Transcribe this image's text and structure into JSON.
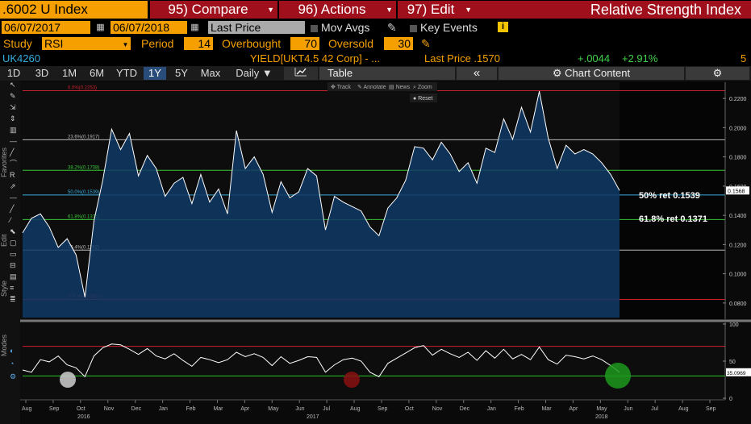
{
  "header": {
    "ticker": ".6002 U Index",
    "compare_label": "95) Compare",
    "actions_label": "96) Actions",
    "edit_label": "97) Edit",
    "title": "Relative Strength Index"
  },
  "params": {
    "start_date": "06/07/2017",
    "end_date": "06/07/2018",
    "price_field": "Last Price",
    "mov_avgs": "Mov Avgs",
    "key_events": "Key Events",
    "study_label": "Study",
    "study_value": "RSI",
    "period_label": "Period",
    "period_value": "14",
    "overbought_label": "Overbought",
    "overbought_value": "70",
    "oversold_label": "Oversold",
    "oversold_value": "30"
  },
  "security": {
    "id": "UK4260",
    "description": "YIELD[UKT4.5 42 Corp] - ...",
    "last_price_label": "Last Price .1570",
    "change": "+.0044",
    "change_pct": "+2.91%",
    "count": "5"
  },
  "toolbar": {
    "ranges": [
      "1D",
      "3D",
      "1M",
      "6M",
      "YTD",
      "1Y",
      "5Y",
      "Max"
    ],
    "active_range": "1Y",
    "frequency": "Daily",
    "table_label": "Table",
    "chart_content_label": "Chart Content",
    "collapse_icon": "double-chevron-left-icon",
    "settings_icon": "gear-icon"
  },
  "chart_tools": {
    "track": "Track",
    "annotate": "Annotate",
    "news": "News",
    "zoom": "Zoom",
    "reset": "Reset"
  },
  "side_labels": {
    "favorites": "Favorites",
    "edit": "Edit",
    "style": "Style",
    "modes": "Modes"
  },
  "chart_data": {
    "type": "area",
    "colors": {
      "price_fill": "#0f3a66",
      "price_line": "#ffffff",
      "rsi_line": "#ffffff",
      "overbought_line": "#d21f2c",
      "oversold_line": "#27c427",
      "accent": "#f5a000"
    },
    "price_axis": {
      "ylim": [
        0.07,
        0.23
      ],
      "ticks": [
        "0.2200",
        "0.2000",
        "0.1800",
        "0.1600",
        "0.1400",
        "0.1200",
        "0.1000",
        "0.0800"
      ],
      "last_value_label": "0.1568"
    },
    "fib_levels": [
      {
        "label": "0.0%(0.2253)",
        "value": 0.2253,
        "color": "#c8202c"
      },
      {
        "label": "23.6%(0.1917)",
        "value": 0.1917,
        "color": "#bbbbbb"
      },
      {
        "label": "38.2%(0.1708)",
        "value": 0.1708,
        "color": "#37c437"
      },
      {
        "label": "50.0%(0.1539)",
        "value": 0.1539,
        "color": "#35aede"
      },
      {
        "label": "61.8%(0.1371)",
        "value": 0.1371,
        "color": "#37c437"
      },
      {
        "label": "76.4%(0.1162)",
        "value": 0.1162,
        "color": "#bbbbbb"
      },
      {
        "label": "100.0%(0.0824)",
        "value": 0.0824,
        "color": "#c8202c"
      }
    ],
    "annotations": [
      "50% ret 0.1539",
      "61.8% ret 0.1371"
    ],
    "price_series": [
      0.128,
      0.138,
      0.141,
      0.132,
      0.118,
      0.124,
      0.113,
      0.084,
      0.136,
      0.164,
      0.199,
      0.185,
      0.196,
      0.167,
      0.181,
      0.172,
      0.153,
      0.162,
      0.166,
      0.148,
      0.168,
      0.149,
      0.158,
      0.141,
      0.198,
      0.172,
      0.18,
      0.168,
      0.142,
      0.163,
      0.152,
      0.156,
      0.172,
      0.167,
      0.13,
      0.153,
      0.149,
      0.146,
      0.143,
      0.132,
      0.126,
      0.145,
      0.152,
      0.164,
      0.187,
      0.186,
      0.178,
      0.19,
      0.182,
      0.17,
      0.176,
      0.162,
      0.186,
      0.183,
      0.206,
      0.192,
      0.214,
      0.197,
      0.225,
      0.193,
      0.172,
      0.188,
      0.182,
      0.185,
      0.182,
      0.176,
      0.168,
      0.157
    ],
    "rsi_axis": {
      "ylim": [
        0,
        100
      ],
      "ticks": [
        "100",
        "50",
        "0"
      ],
      "overbought": 70,
      "oversold": 30,
      "last_value_label": "35.0969"
    },
    "rsi_series": [
      38,
      35,
      52,
      49,
      57,
      45,
      41,
      29,
      57,
      68,
      73,
      72,
      66,
      59,
      67,
      57,
      53,
      60,
      51,
      43,
      55,
      52,
      48,
      52,
      62,
      56,
      60,
      55,
      44,
      56,
      47,
      51,
      56,
      55,
      35,
      45,
      52,
      54,
      50,
      35,
      29,
      47,
      54,
      61,
      68,
      71,
      58,
      66,
      60,
      55,
      62,
      51,
      64,
      54,
      66,
      53,
      59,
      52,
      69,
      52,
      46,
      58,
      56,
      53,
      57,
      52,
      44,
      35
    ],
    "x_ticks": [
      "Aug",
      "Sep",
      "Oct",
      "Nov",
      "Dec",
      "Jan",
      "Feb",
      "Mar",
      "Apr",
      "May",
      "Jun",
      "Jul",
      "Aug",
      "Sep",
      "Oct",
      "Nov",
      "Dec",
      "Jan",
      "Feb",
      "Mar",
      "Apr",
      "May",
      "Jun",
      "Jul",
      "Aug",
      "Sep"
    ],
    "year_labels": [
      "2016",
      "2017",
      "2018"
    ]
  }
}
